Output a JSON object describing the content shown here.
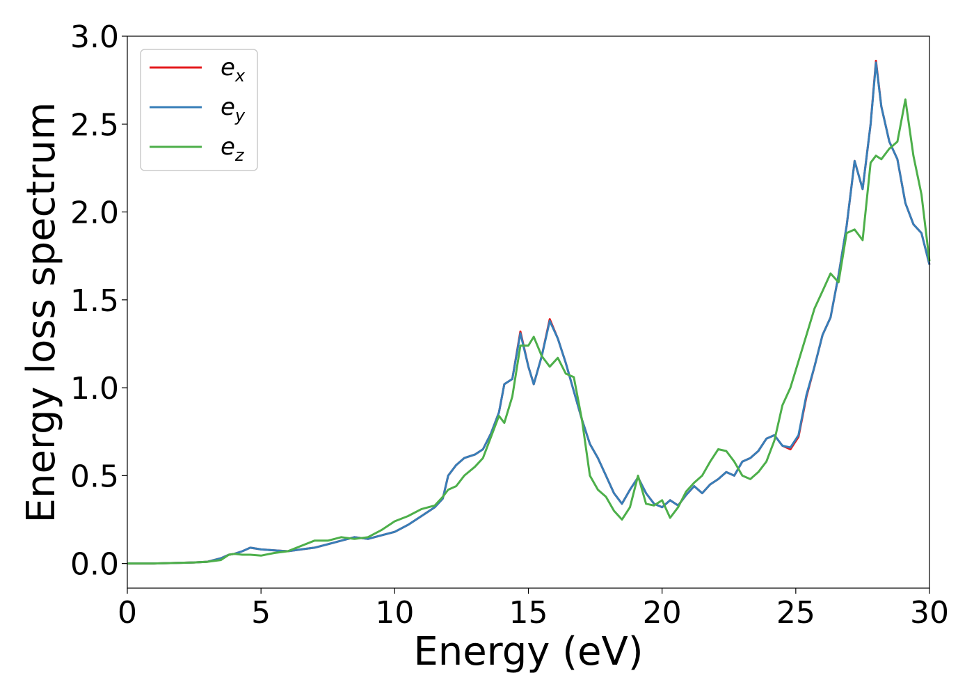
{
  "chart_data": {
    "type": "line",
    "xlabel": "Energy (eV)",
    "ylabel": "Energy loss spectrum",
    "xlim": [
      0,
      30
    ],
    "ylim": [
      -0.14,
      3.0
    ],
    "xticks": [
      "0",
      "5",
      "10",
      "15",
      "20",
      "25",
      "30"
    ],
    "yticks": [
      "0.0",
      "0.5",
      "1.0",
      "1.5",
      "2.0",
      "2.5",
      "3.0"
    ],
    "grid": false,
    "legend_position": "top-left",
    "x": [
      0,
      0.5,
      1,
      1.5,
      2,
      2.5,
      3,
      3.5,
      3.8,
      4,
      4.3,
      4.6,
      5,
      5.5,
      6,
      6.5,
      7,
      7.5,
      8,
      8.5,
      9,
      9.5,
      10,
      10.5,
      11,
      11.5,
      11.8,
      12,
      12.3,
      12.6,
      13,
      13.3,
      13.6,
      13.9,
      14.1,
      14.4,
      14.7,
      15,
      15.2,
      15.5,
      15.8,
      16.1,
      16.4,
      16.7,
      17,
      17.3,
      17.6,
      17.9,
      18.2,
      18.5,
      18.8,
      19.1,
      19.4,
      19.7,
      20,
      20.3,
      20.6,
      20.9,
      21.2,
      21.5,
      21.8,
      22.1,
      22.4,
      22.7,
      23,
      23.3,
      23.6,
      23.9,
      24.2,
      24.5,
      24.8,
      25.1,
      25.4,
      25.7,
      26,
      26.3,
      26.6,
      26.9,
      27.2,
      27.5,
      27.8,
      28,
      28.2,
      28.5,
      28.8,
      29.1,
      29.4,
      29.7,
      30
    ],
    "series": [
      {
        "name": "e",
        "subscript": "x",
        "color": "#e41a1c",
        "values": [
          0,
          0,
          0,
          0.002,
          0.004,
          0.006,
          0.01,
          0.03,
          0.05,
          0.055,
          0.07,
          0.09,
          0.08,
          0.075,
          0.07,
          0.08,
          0.09,
          0.11,
          0.13,
          0.15,
          0.14,
          0.16,
          0.18,
          0.22,
          0.27,
          0.32,
          0.37,
          0.5,
          0.56,
          0.6,
          0.62,
          0.65,
          0.74,
          0.86,
          1.02,
          1.05,
          1.32,
          1.12,
          1.02,
          1.18,
          1.39,
          1.28,
          1.14,
          0.98,
          0.82,
          0.68,
          0.6,
          0.5,
          0.4,
          0.34,
          0.42,
          0.49,
          0.4,
          0.34,
          0.32,
          0.36,
          0.33,
          0.39,
          0.44,
          0.4,
          0.45,
          0.48,
          0.52,
          0.5,
          0.58,
          0.6,
          0.64,
          0.71,
          0.73,
          0.67,
          0.65,
          0.72,
          0.95,
          1.12,
          1.3,
          1.4,
          1.64,
          1.92,
          2.29,
          2.13,
          2.5,
          2.86,
          2.6,
          2.4,
          2.3,
          2.05,
          1.93,
          1.88,
          1.7
        ]
      },
      {
        "name": "e",
        "subscript": "y",
        "color": "#377eb8",
        "values": [
          0,
          0,
          0,
          0.002,
          0.004,
          0.006,
          0.01,
          0.03,
          0.05,
          0.055,
          0.07,
          0.09,
          0.08,
          0.075,
          0.07,
          0.08,
          0.09,
          0.11,
          0.13,
          0.15,
          0.14,
          0.16,
          0.18,
          0.22,
          0.27,
          0.32,
          0.37,
          0.5,
          0.56,
          0.6,
          0.62,
          0.65,
          0.74,
          0.86,
          1.02,
          1.05,
          1.31,
          1.12,
          1.02,
          1.18,
          1.38,
          1.28,
          1.14,
          0.98,
          0.82,
          0.68,
          0.6,
          0.5,
          0.4,
          0.34,
          0.42,
          0.49,
          0.4,
          0.34,
          0.32,
          0.36,
          0.33,
          0.39,
          0.44,
          0.4,
          0.45,
          0.48,
          0.52,
          0.5,
          0.58,
          0.6,
          0.64,
          0.71,
          0.73,
          0.67,
          0.66,
          0.73,
          0.96,
          1.12,
          1.3,
          1.4,
          1.64,
          1.92,
          2.29,
          2.13,
          2.5,
          2.85,
          2.6,
          2.4,
          2.3,
          2.05,
          1.93,
          1.88,
          1.7
        ]
      },
      {
        "name": "e",
        "subscript": "z",
        "color": "#4daf4a",
        "values": [
          0,
          0,
          0,
          0.002,
          0.004,
          0.006,
          0.01,
          0.02,
          0.05,
          0.055,
          0.05,
          0.05,
          0.045,
          0.06,
          0.07,
          0.1,
          0.13,
          0.13,
          0.15,
          0.14,
          0.15,
          0.19,
          0.24,
          0.27,
          0.31,
          0.33,
          0.38,
          0.42,
          0.44,
          0.5,
          0.55,
          0.6,
          0.72,
          0.84,
          0.8,
          0.95,
          1.24,
          1.24,
          1.29,
          1.18,
          1.12,
          1.17,
          1.08,
          1.06,
          0.82,
          0.5,
          0.42,
          0.38,
          0.3,
          0.25,
          0.32,
          0.5,
          0.34,
          0.33,
          0.36,
          0.26,
          0.32,
          0.41,
          0.46,
          0.5,
          0.58,
          0.65,
          0.64,
          0.58,
          0.5,
          0.48,
          0.52,
          0.58,
          0.7,
          0.9,
          1.0,
          1.15,
          1.3,
          1.45,
          1.55,
          1.65,
          1.6,
          1.88,
          1.9,
          1.84,
          2.28,
          2.32,
          2.3,
          2.36,
          2.4,
          2.64,
          2.32,
          2.1,
          1.72
        ]
      }
    ]
  }
}
